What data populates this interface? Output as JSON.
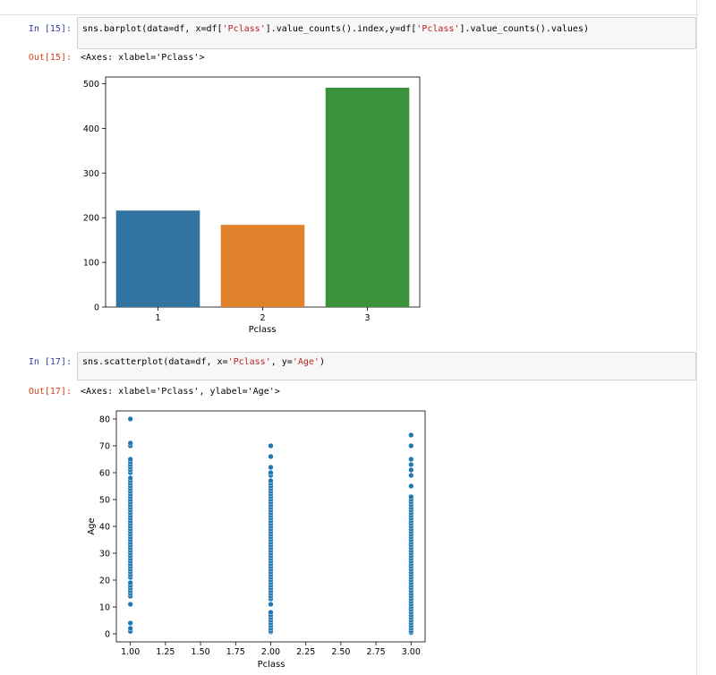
{
  "cells": [
    {
      "in_prompt": "In [15]:",
      "code": [
        {
          "t": "sns.barplot(data=df, x=df[",
          "s": false
        },
        {
          "t": "'Pclass'",
          "s": true
        },
        {
          "t": "].value_counts().index,y=df[",
          "s": false
        },
        {
          "t": "'Pclass'",
          "s": true
        },
        {
          "t": "].value_counts().values)",
          "s": false
        }
      ],
      "out_prompt": "Out[15]:",
      "out_text": "<Axes: xlabel='Pclass'>"
    },
    {
      "in_prompt": "In [17]:",
      "code": [
        {
          "t": "sns.scatterplot(data=df, x=",
          "s": false
        },
        {
          "t": "'Pclass'",
          "s": true
        },
        {
          "t": ", y=",
          "s": false
        },
        {
          "t": "'Age'",
          "s": true
        },
        {
          "t": ")",
          "s": false
        }
      ],
      "out_prompt": "Out[17]:",
      "out_text": "<Axes: xlabel='Pclass', ylabel='Age'>"
    }
  ],
  "chart_data": [
    {
      "type": "bar",
      "categories": [
        "1",
        "2",
        "3"
      ],
      "values": [
        216,
        184,
        491
      ],
      "colors": [
        "#3274a1",
        "#e1812c",
        "#3a923a"
      ],
      "xlabel": "Pclass",
      "ylabel": "",
      "ylim": [
        0,
        515
      ],
      "yticks": [
        0,
        100,
        200,
        300,
        400,
        500
      ]
    },
    {
      "type": "scatter",
      "xlabel": "Pclass",
      "ylabel": "Age",
      "xlim": [
        0.9,
        3.1
      ],
      "ylim": [
        -3,
        83
      ],
      "xticks": [
        "1.00",
        "1.25",
        "1.50",
        "1.75",
        "2.00",
        "2.25",
        "2.50",
        "2.75",
        "3.00"
      ],
      "yticks": [
        0,
        10,
        20,
        30,
        40,
        50,
        60,
        70,
        80
      ],
      "color": "#1f77b4",
      "series": [
        {
          "x": 1,
          "y": [
            0.92,
            2,
            4,
            11,
            14,
            15,
            16,
            17,
            18,
            19,
            21,
            22,
            23,
            24,
            25,
            26,
            27,
            28,
            29,
            30,
            31,
            32,
            33,
            34,
            35,
            36,
            37,
            38,
            39,
            40,
            41,
            42,
            43,
            44,
            45,
            46,
            47,
            48,
            49,
            50,
            51,
            52,
            53,
            54,
            55,
            56,
            57,
            58,
            60,
            61,
            62,
            63,
            64,
            65,
            70,
            71,
            80
          ]
        },
        {
          "x": 2,
          "y": [
            0.67,
            1,
            2,
            3,
            4,
            5,
            6,
            7,
            8,
            11,
            13,
            14,
            15,
            16,
            17,
            18,
            19,
            20,
            21,
            22,
            23,
            24,
            25,
            26,
            27,
            28,
            29,
            30,
            31,
            32,
            33,
            34,
            35,
            36,
            37,
            38,
            39,
            40,
            41,
            42,
            43,
            44,
            45,
            46,
            47,
            48,
            49,
            50,
            51,
            52,
            53,
            54,
            55,
            56,
            57,
            59,
            60,
            62,
            66,
            70
          ]
        },
        {
          "x": 3,
          "y": [
            0.42,
            1,
            2,
            3,
            4,
            5,
            6,
            7,
            8,
            9,
            10,
            11,
            12,
            13,
            14,
            15,
            16,
            17,
            18,
            19,
            20,
            21,
            22,
            23,
            24,
            25,
            26,
            27,
            28,
            29,
            30,
            31,
            32,
            33,
            34,
            35,
            36,
            37,
            38,
            39,
            40,
            41,
            42,
            43,
            44,
            45,
            46,
            47,
            48,
            49,
            50,
            51,
            55,
            59,
            61,
            63,
            65,
            70,
            74
          ]
        }
      ]
    }
  ]
}
